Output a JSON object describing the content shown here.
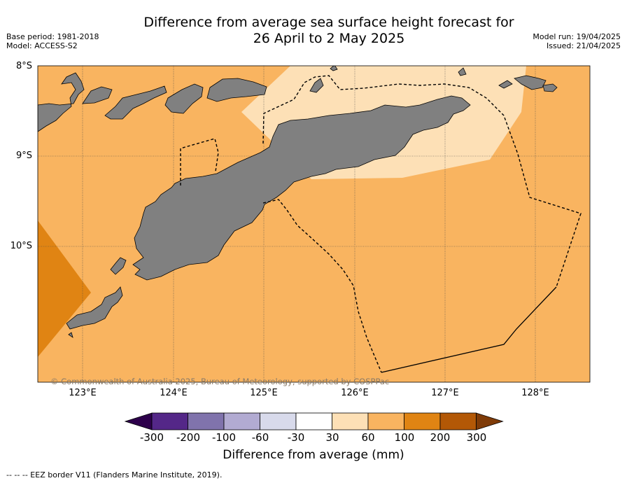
{
  "header": {
    "title_line1": "Difference from average sea surface height forecast for",
    "title_line2": "26 April to 2 May 2025",
    "base_period": "Base period: 1981-2018",
    "model": "Model: ACCESS-S2",
    "model_run": "Model run: 19/04/2025",
    "issued": "Issued: 21/04/2025"
  },
  "map": {
    "lat_labels": [
      "8°S",
      "9°S",
      "10°S"
    ],
    "lon_labels": [
      "123°E",
      "124°E",
      "125°E",
      "126°E",
      "127°E",
      "128°E"
    ],
    "copyright": "© Commonwealth of Australia 2025, Bureau of Meteorology, supported by COSPPac",
    "colors": {
      "land": "#808080",
      "class_30_60": "#fde0b6",
      "class_60_100": "#f9b460",
      "class_100_200": "#e08413"
    }
  },
  "colorbar": {
    "ticks": [
      "-300",
      "-200",
      "-100",
      "-60",
      "-30",
      "30",
      "60",
      "100",
      "200",
      "300"
    ],
    "colors": [
      "#2d004b",
      "#542788",
      "#8073ac",
      "#b2abd2",
      "#d8daeb",
      "#ffffff",
      "#fde0b6",
      "#f9b460",
      "#e08413",
      "#b35806",
      "#7f3b08"
    ],
    "label": "Difference from average (mm)"
  },
  "legend": {
    "eez_text": "--  --  -- EEZ border V11 (Flanders Marine Institute, 2019)."
  }
}
